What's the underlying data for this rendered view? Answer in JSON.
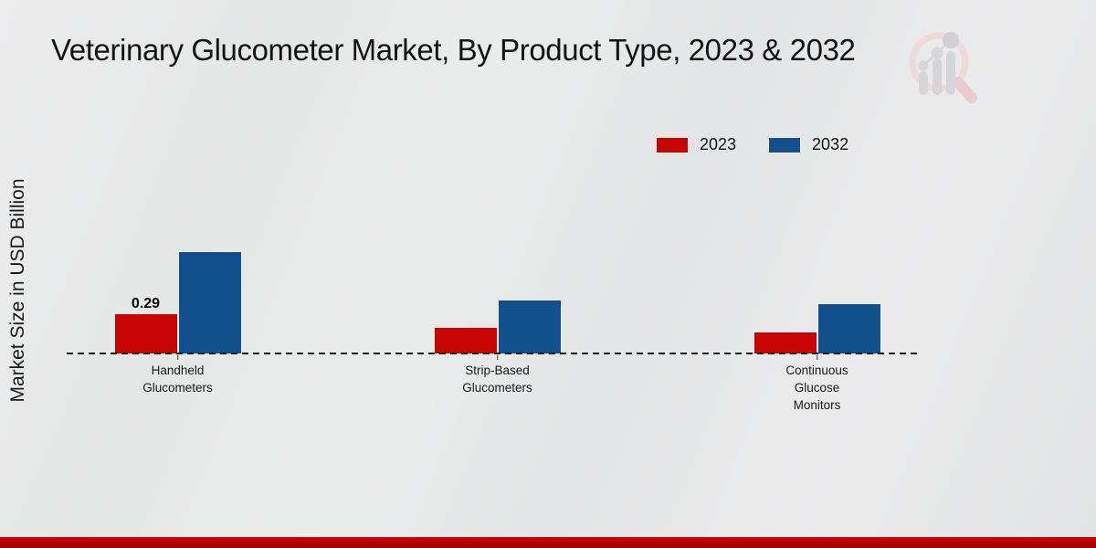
{
  "title": "Veterinary Glucometer Market, By Product Type, 2023 & 2032",
  "y_axis_label": "Market Size in USD Billion",
  "legend": {
    "items": [
      {
        "label": "2023",
        "color": "#c90404"
      },
      {
        "label": "2032",
        "color": "#11508c"
      }
    ],
    "position": "top-right"
  },
  "colors": {
    "series_2023": "#c90404",
    "series_2032": "#11508c",
    "footer_band": "#b50303",
    "background": "#e8e9e9",
    "baseline": "#1b1b1b"
  },
  "chart_data": {
    "type": "bar",
    "title": "Veterinary Glucometer Market, By Product Type, 2023 & 2032",
    "xlabel": "",
    "ylabel": "Market Size in USD Billion",
    "categories": [
      "Handheld Glucometers",
      "Strip-Based Glucometers",
      "Continuous Glucose Monitors"
    ],
    "series": [
      {
        "name": "2023",
        "color": "#c90404",
        "values": [
          0.29,
          0.19,
          0.16
        ],
        "data_labels": [
          "0.29",
          "",
          ""
        ]
      },
      {
        "name": "2032",
        "color": "#11508c",
        "values": [
          0.74,
          0.39,
          0.36
        ],
        "data_labels": [
          "",
          "",
          ""
        ]
      }
    ],
    "ylim": [
      0,
      0.8
    ],
    "grid": false,
    "y_axis_ticks_visible": false,
    "baseline_style": "dashed",
    "legend_position": "top-right"
  },
  "branding": {
    "logo_icon": "magnifier-bar-chart-logo"
  }
}
